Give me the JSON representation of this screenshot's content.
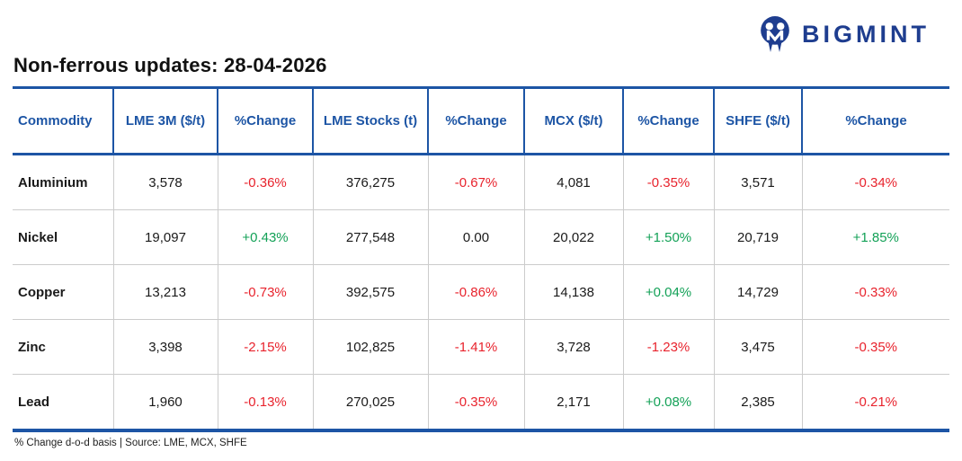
{
  "brand": {
    "name": "BIGMINT",
    "logo_icon": "bigmint-owl-icon",
    "color": "#1e3d8f"
  },
  "page_title": "Non-ferrous updates: 28-04-2026",
  "table": {
    "columns": [
      "Commodity",
      "LME 3M ($/t)",
      "%Change",
      "LME Stocks (t)",
      "%Change",
      "MCX ($/t)",
      "%Change",
      "SHFE ($/t)",
      "%Change"
    ],
    "rows": [
      {
        "cells": [
          {
            "value": "Aluminium"
          },
          {
            "value": "3,578"
          },
          {
            "value": "-0.36%",
            "trend": "down"
          },
          {
            "value": "376,275"
          },
          {
            "value": "-0.67%",
            "trend": "down"
          },
          {
            "value": "4,081"
          },
          {
            "value": "-0.35%",
            "trend": "down"
          },
          {
            "value": "3,571"
          },
          {
            "value": "-0.34%",
            "trend": "down"
          }
        ]
      },
      {
        "cells": [
          {
            "value": "Nickel"
          },
          {
            "value": "19,097"
          },
          {
            "value": "+0.43%",
            "trend": "up"
          },
          {
            "value": "277,548"
          },
          {
            "value": "0.00",
            "trend": "neutral"
          },
          {
            "value": "20,022"
          },
          {
            "value": "+1.50%",
            "trend": "up"
          },
          {
            "value": "20,719"
          },
          {
            "value": "+1.85%",
            "trend": "up"
          }
        ]
      },
      {
        "cells": [
          {
            "value": "Copper"
          },
          {
            "value": "13,213"
          },
          {
            "value": "-0.73%",
            "trend": "down"
          },
          {
            "value": "392,575"
          },
          {
            "value": "-0.86%",
            "trend": "down"
          },
          {
            "value": "14,138"
          },
          {
            "value": "+0.04%",
            "trend": "up"
          },
          {
            "value": "14,729"
          },
          {
            "value": "-0.33%",
            "trend": "down"
          }
        ]
      },
      {
        "cells": [
          {
            "value": "Zinc"
          },
          {
            "value": "3,398"
          },
          {
            "value": "-2.15%",
            "trend": "down"
          },
          {
            "value": "102,825"
          },
          {
            "value": "-1.41%",
            "trend": "down"
          },
          {
            "value": "3,728"
          },
          {
            "value": "-1.23%",
            "trend": "down"
          },
          {
            "value": "3,475"
          },
          {
            "value": "-0.35%",
            "trend": "down"
          }
        ]
      },
      {
        "cells": [
          {
            "value": "Lead"
          },
          {
            "value": "1,960"
          },
          {
            "value": "-0.13%",
            "trend": "down"
          },
          {
            "value": "270,025"
          },
          {
            "value": "-0.35%",
            "trend": "down"
          },
          {
            "value": "2,171"
          },
          {
            "value": "+0.08%",
            "trend": "up"
          },
          {
            "value": "2,385"
          },
          {
            "value": "-0.21%",
            "trend": "down"
          }
        ]
      }
    ]
  },
  "footer_note": "% Change d-o-d basis | Source: LME, MCX, SHFE",
  "colors": {
    "header_blue": "#1d55a5",
    "negative_red": "#e8232d",
    "positive_green": "#13a157",
    "body_border_gray": "#cccccc",
    "brand_navy": "#1e3d8f"
  },
  "chart_data": {
    "type": "table",
    "title": "Non-ferrous updates: 28-04-2026",
    "columns": [
      "Commodity",
      "LME 3M ($/t)",
      "%Change",
      "LME Stocks (t)",
      "%Change",
      "MCX ($/t)",
      "%Change",
      "SHFE ($/t)",
      "%Change"
    ],
    "rows": [
      [
        "Aluminium",
        3578,
        -0.36,
        376275,
        -0.67,
        4081,
        -0.35,
        3571,
        -0.34
      ],
      [
        "Nickel",
        19097,
        0.43,
        277548,
        0.0,
        20022,
        1.5,
        20719,
        1.85
      ],
      [
        "Copper",
        13213,
        -0.73,
        392575,
        -0.86,
        14138,
        0.04,
        14729,
        -0.33
      ],
      [
        "Zinc",
        3398,
        -2.15,
        102825,
        -1.41,
        3728,
        -1.23,
        3475,
        -0.35
      ],
      [
        "Lead",
        1960,
        -0.13,
        270025,
        -0.35,
        2171,
        0.08,
        2385,
        -0.21
      ]
    ],
    "notes": "% Change d-o-d basis | Source: LME, MCX, SHFE",
    "pct_change_units": "percent, day-on-day"
  }
}
